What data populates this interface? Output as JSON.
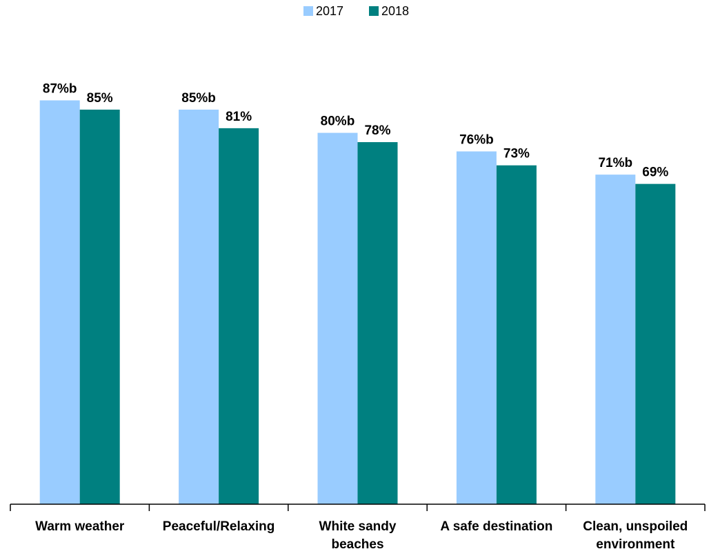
{
  "chart_data": {
    "type": "bar",
    "categories": [
      "Warm weather",
      "Peaceful/Relaxing",
      "White sandy\nbeaches",
      "A safe destination",
      "Clean, unspoiled\nenvironment"
    ],
    "series": [
      {
        "name": "2017",
        "color": "#99ccff",
        "values": [
          87,
          85,
          80,
          76,
          71
        ],
        "value_labels": [
          "87%b",
          "85%b",
          "80%b",
          "76%b",
          "71%b"
        ]
      },
      {
        "name": "2018",
        "color": "#008080",
        "values": [
          85,
          81,
          78,
          73,
          69
        ],
        "value_labels": [
          "85%",
          "81%",
          "78%",
          "73%",
          "69%"
        ]
      }
    ],
    "ylim": [
      0,
      100
    ],
    "legend": "top"
  }
}
